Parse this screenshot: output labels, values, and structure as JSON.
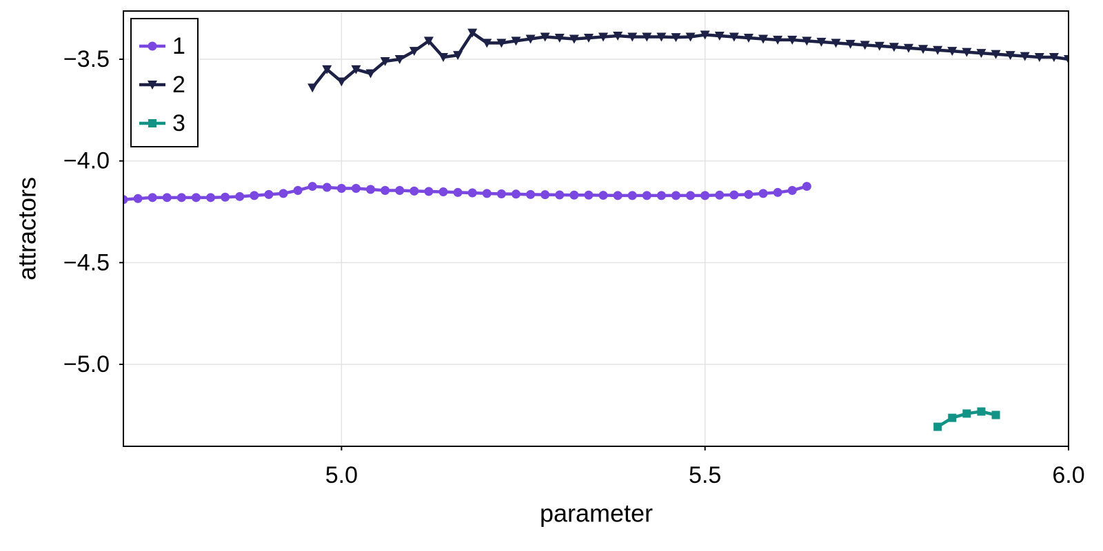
{
  "chart_data": {
    "type": "line",
    "xlabel": "parameter",
    "ylabel": "attractors",
    "xlim": [
      4.7,
      6.0
    ],
    "ylim": [
      -5.403,
      -3.263
    ],
    "xticks": [
      {
        "value": 5,
        "label": "5.0"
      },
      {
        "value": 5.5,
        "label": "5.5"
      },
      {
        "value": 6,
        "label": "6.0"
      }
    ],
    "yticks": [
      {
        "value": -3.5,
        "label": "−3.5"
      },
      {
        "value": -4,
        "label": "−4.0"
      },
      {
        "value": -4.5,
        "label": "−4.5"
      },
      {
        "value": -5,
        "label": "−5.0"
      }
    ],
    "grid": true,
    "legend": "upper left",
    "series": [
      {
        "name": "1",
        "color": "#7a48e0",
        "marker": "circle",
        "x": [
          4.7,
          4.72,
          4.74,
          4.76,
          4.78,
          4.8,
          4.82,
          4.84,
          4.86,
          4.88,
          4.9,
          4.92,
          4.94,
          4.96,
          4.98,
          5.0,
          5.02,
          5.04,
          5.06,
          5.08,
          5.1,
          5.12,
          5.14,
          5.16,
          5.18,
          5.2,
          5.22,
          5.24,
          5.26,
          5.28,
          5.3,
          5.32,
          5.34,
          5.36,
          5.38,
          5.4,
          5.42,
          5.44,
          5.46,
          5.48,
          5.5,
          5.52,
          5.54,
          5.56,
          5.58,
          5.6,
          5.62,
          5.64
        ],
        "values": [
          -4.19,
          -4.185,
          -4.18,
          -4.18,
          -4.18,
          -4.18,
          -4.18,
          -4.178,
          -4.175,
          -4.17,
          -4.165,
          -4.16,
          -4.145,
          -4.125,
          -4.13,
          -4.135,
          -4.135,
          -4.14,
          -4.145,
          -4.145,
          -4.148,
          -4.15,
          -4.152,
          -4.155,
          -4.157,
          -4.16,
          -4.162,
          -4.163,
          -4.165,
          -4.166,
          -4.167,
          -4.168,
          -4.168,
          -4.169,
          -4.17,
          -4.17,
          -4.17,
          -4.17,
          -4.17,
          -4.17,
          -4.17,
          -4.168,
          -4.167,
          -4.165,
          -4.16,
          -4.155,
          -4.145,
          -4.125
        ]
      },
      {
        "name": "2",
        "color": "#1c2145",
        "marker": "triangle-down",
        "x": [
          4.96,
          4.98,
          5.0,
          5.02,
          5.04,
          5.06,
          5.08,
          5.1,
          5.12,
          5.14,
          5.16,
          5.18,
          5.2,
          5.22,
          5.24,
          5.26,
          5.28,
          5.3,
          5.32,
          5.34,
          5.36,
          5.38,
          5.4,
          5.42,
          5.44,
          5.46,
          5.48,
          5.5,
          5.52,
          5.54,
          5.56,
          5.58,
          5.6,
          5.62,
          5.64,
          5.66,
          5.68,
          5.7,
          5.72,
          5.74,
          5.76,
          5.78,
          5.8,
          5.82,
          5.84,
          5.86,
          5.88,
          5.9,
          5.92,
          5.94,
          5.96,
          5.98,
          6.0
        ],
        "values": [
          -3.64,
          -3.55,
          -3.61,
          -3.55,
          -3.57,
          -3.51,
          -3.5,
          -3.46,
          -3.41,
          -3.49,
          -3.48,
          -3.37,
          -3.42,
          -3.42,
          -3.41,
          -3.4,
          -3.39,
          -3.395,
          -3.4,
          -3.395,
          -3.39,
          -3.385,
          -3.39,
          -3.39,
          -3.39,
          -3.392,
          -3.39,
          -3.38,
          -3.385,
          -3.39,
          -3.395,
          -3.4,
          -3.405,
          -3.405,
          -3.41,
          -3.415,
          -3.42,
          -3.425,
          -3.43,
          -3.435,
          -3.44,
          -3.445,
          -3.45,
          -3.455,
          -3.46,
          -3.465,
          -3.47,
          -3.475,
          -3.48,
          -3.485,
          -3.49,
          -3.49,
          -3.5
        ]
      },
      {
        "name": "3",
        "color": "#139385",
        "marker": "square",
        "x": [
          5.82,
          5.84,
          5.86,
          5.88,
          5.9
        ],
        "values": [
          -5.307,
          -5.263,
          -5.242,
          -5.232,
          -5.249
        ]
      }
    ]
  }
}
